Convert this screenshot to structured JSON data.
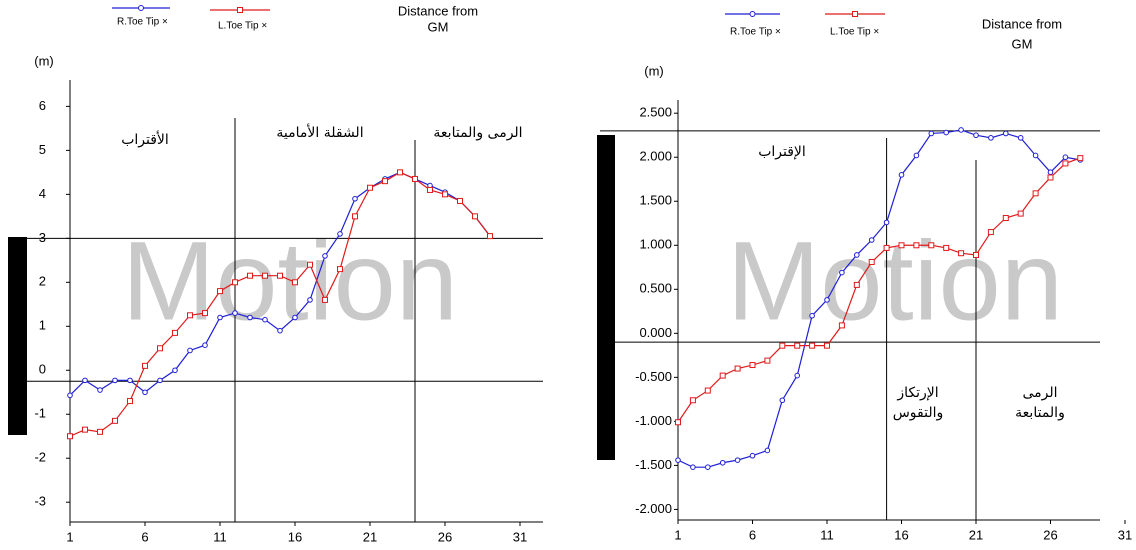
{
  "chart_data": [
    {
      "type": "line",
      "y_label": "(m)",
      "legend_title": [
        "Distance from",
        "GM"
      ],
      "watermark": "Motion",
      "x": [
        1,
        2,
        3,
        4,
        5,
        6,
        7,
        8,
        9,
        10,
        11,
        12,
        13,
        14,
        15,
        16,
        17,
        18,
        19,
        20,
        21,
        22,
        23,
        24,
        25,
        26,
        27,
        28,
        29
      ],
      "series": [
        {
          "name": "R.Toe Tip ×",
          "color": "#1f1fd6",
          "marker": "circle",
          "values": [
            -0.57,
            -0.23,
            -0.45,
            -0.23,
            -0.23,
            -0.5,
            -0.23,
            0,
            0.45,
            0.57,
            1.2,
            1.3,
            1.2,
            1.15,
            0.9,
            1.2,
            1.6,
            2.6,
            3.1,
            3.9,
            4.15,
            4.35,
            4.5,
            4.35,
            4.2,
            4.05,
            3.85,
            3.5,
            3.05
          ]
        },
        {
          "name": "L.Toe Tip ×",
          "color": "#e01b1b",
          "marker": "square",
          "values": [
            -1.5,
            -1.35,
            -1.4,
            -1.15,
            -0.7,
            0.1,
            0.5,
            0.85,
            1.25,
            1.3,
            1.8,
            2.0,
            2.15,
            2.15,
            2.15,
            2.0,
            2.4,
            1.6,
            2.3,
            3.5,
            4.15,
            4.3,
            4.5,
            4.35,
            4.1,
            4.0,
            3.85,
            3.5,
            3.05
          ]
        }
      ],
      "xlim": [
        1,
        32.5
      ],
      "xticks": [
        1,
        6,
        11,
        16,
        21,
        26,
        31
      ],
      "ylim": [
        -3.45,
        6.6
      ],
      "yticks": [
        -3,
        -2,
        -1,
        0,
        1,
        2,
        3,
        4,
        5,
        6
      ],
      "vlines": [
        12,
        24
      ],
      "hlines": [
        3,
        -0.25
      ],
      "annotations": [
        {
          "lines": [
            "الأقتراب"
          ]
        },
        {
          "lines": [
            "الشقلة الأمامية"
          ]
        },
        {
          "lines": [
            "الرمى والمتابعة"
          ]
        }
      ]
    },
    {
      "type": "line",
      "y_label": "(m)",
      "legend_title": [
        "Distance from",
        "GM"
      ],
      "watermark": "Motion",
      "x": [
        1,
        2,
        3,
        4,
        5,
        6,
        7,
        8,
        9,
        10,
        11,
        12,
        13,
        14,
        15,
        16,
        17,
        18,
        19,
        20,
        21,
        22,
        23,
        24,
        25,
        26,
        27,
        28
      ],
      "series": [
        {
          "name": "R.Toe Tip ×",
          "color": "#1f1fd6",
          "marker": "circle",
          "values": [
            -1.44,
            -1.52,
            -1.52,
            -1.47,
            -1.44,
            -1.39,
            -1.33,
            -0.76,
            -0.48,
            0.2,
            0.38,
            0.69,
            0.89,
            1.06,
            1.26,
            1.8,
            2.02,
            2.27,
            2.28,
            2.31,
            2.25,
            2.22,
            2.27,
            2.22,
            2.02,
            1.83,
            2.0,
            1.97
          ]
        },
        {
          "name": "L.Toe Tip ×",
          "color": "#e01b1b",
          "marker": "square",
          "values": [
            -1.01,
            -0.76,
            -0.65,
            -0.48,
            -0.4,
            -0.36,
            -0.31,
            -0.14,
            -0.14,
            -0.14,
            -0.14,
            0.09,
            0.55,
            0.81,
            0.97,
            1.0,
            1.0,
            1.0,
            0.97,
            0.91,
            0.89,
            1.15,
            1.31,
            1.36,
            1.59,
            1.77,
            1.93,
            1.99
          ]
        }
      ],
      "xlim": [
        1,
        31
      ],
      "xticks": [
        1,
        6,
        11,
        16,
        21,
        26,
        31
      ],
      "ylim": [
        -2.12,
        2.65
      ],
      "yticks": [
        {
          "value": -2,
          "label": "-2.000"
        },
        {
          "value": -1.5,
          "label": "-1.500"
        },
        {
          "value": -1,
          "label": "-1.000"
        },
        {
          "value": -0.5,
          "label": "-0.500"
        },
        {
          "value": 0,
          "label": "0.000"
        },
        {
          "value": 0.5,
          "label": "0.500"
        },
        {
          "value": 1,
          "label": "1.000"
        },
        {
          "value": 1.5,
          "label": "1.500"
        },
        {
          "value": 2,
          "label": "2.000"
        },
        {
          "value": 2.5,
          "label": "2.500"
        }
      ],
      "vlines": [
        15,
        21
      ],
      "hlines": [
        2.3,
        -0.1
      ],
      "annotations": [
        {
          "lines": [
            "الإقتراب"
          ]
        },
        {
          "lines": [
            "الإرتكاز",
            "والتقوس"
          ]
        },
        {
          "lines": [
            "الرمى",
            "والمتابعة"
          ]
        }
      ]
    }
  ]
}
